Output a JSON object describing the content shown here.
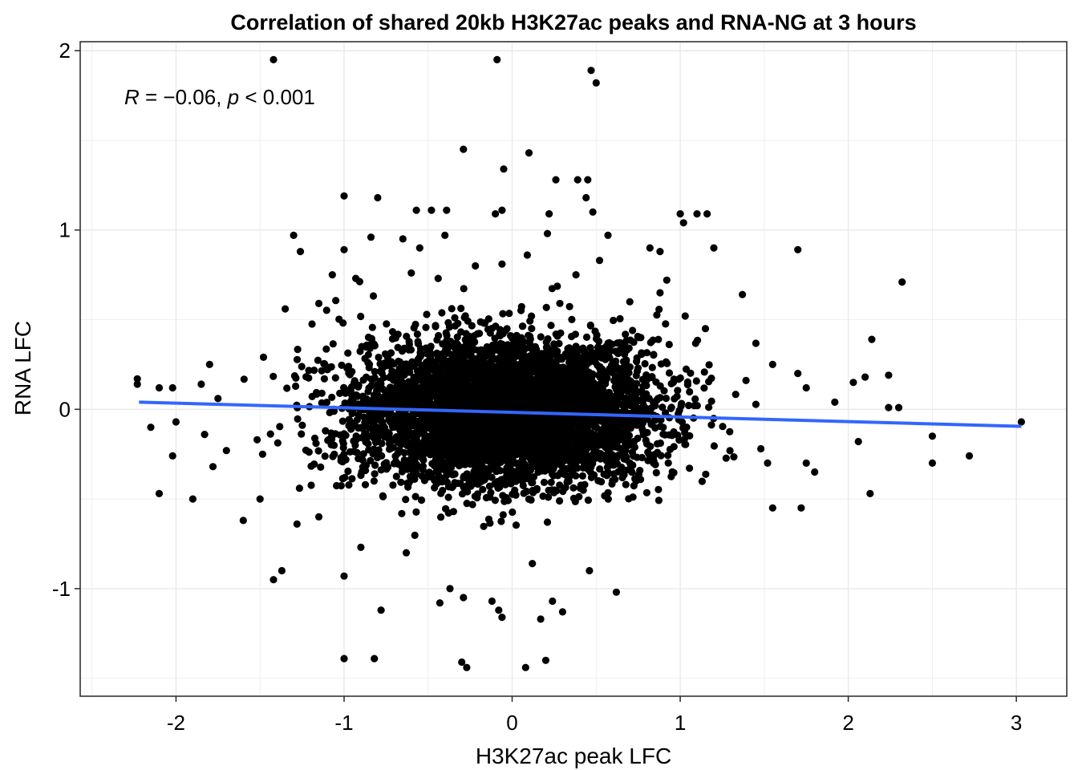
{
  "chart_data": {
    "type": "scatter",
    "title": "Correlation of shared 20kb H3K27ac peaks and RNA-NG  at 3 hours",
    "xlabel": "H3K27ac peak LFC",
    "ylabel": "RNA LFC",
    "xlim": [
      -2.57,
      3.3
    ],
    "ylim": [
      -1.6,
      2.05
    ],
    "x_ticks": [
      -2,
      -1,
      0,
      1,
      2,
      3
    ],
    "x_tick_labels": [
      "-2",
      "-1",
      "0",
      "1",
      "2",
      "3"
    ],
    "y_ticks": [
      -1,
      0,
      1,
      2
    ],
    "y_tick_labels": [
      "-1",
      "0",
      "1",
      "2"
    ],
    "grid": true,
    "annotation": {
      "r_symbol": "R",
      "r_text": " = −0.06, ",
      "p_symbol": "p",
      "p_text": " < 0.001",
      "r_value": -0.06
    },
    "regression_line": {
      "color": "#3366FF",
      "x": [
        -2.22,
        3.03
      ],
      "y": [
        0.04,
        -0.095
      ]
    },
    "point_color": "#000000",
    "cluster": {
      "count": 5200,
      "x_center": -0.05,
      "x_spread": 0.45,
      "y_center": -0.01,
      "y_spread": 0.2
    },
    "points": [
      [
        -1.42,
        1.95
      ],
      [
        -0.09,
        1.95
      ],
      [
        0.47,
        1.89
      ],
      [
        0.5,
        1.82
      ],
      [
        -0.29,
        1.45
      ],
      [
        0.1,
        1.43
      ],
      [
        -0.05,
        1.34
      ],
      [
        0.26,
        1.28
      ],
      [
        0.39,
        1.28
      ],
      [
        0.45,
        1.28
      ],
      [
        -1.0,
        1.19
      ],
      [
        -0.8,
        1.18
      ],
      [
        0.44,
        1.18
      ],
      [
        0.48,
        1.1
      ],
      [
        -0.57,
        1.11
      ],
      [
        -0.48,
        1.11
      ],
      [
        -0.39,
        1.11
      ],
      [
        -0.06,
        1.11
      ],
      [
        -0.1,
        1.09
      ],
      [
        0.22,
        1.09
      ],
      [
        1.0,
        1.09
      ],
      [
        1.02,
        1.04
      ],
      [
        1.1,
        1.09
      ],
      [
        1.16,
        1.09
      ],
      [
        -1.3,
        0.97
      ],
      [
        -1.26,
        0.88
      ],
      [
        -0.84,
        0.96
      ],
      [
        -0.65,
        0.95
      ],
      [
        -0.55,
        0.9
      ],
      [
        -1.0,
        0.89
      ],
      [
        0.21,
        0.98
      ],
      [
        0.57,
        0.97
      ],
      [
        0.88,
        0.88
      ],
      [
        0.82,
        0.9
      ],
      [
        1.2,
        0.9
      ],
      [
        1.7,
        0.89
      ],
      [
        -0.4,
        0.97
      ],
      [
        0.09,
        0.86
      ],
      [
        -0.06,
        0.81
      ],
      [
        0.52,
        0.83
      ],
      [
        -1.07,
        0.75
      ],
      [
        -0.93,
        0.73
      ],
      [
        -0.6,
        0.76
      ],
      [
        -0.44,
        0.73
      ],
      [
        0.38,
        0.75
      ],
      [
        0.92,
        0.72
      ],
      [
        0.88,
        0.65
      ],
      [
        1.37,
        0.64
      ],
      [
        2.32,
        0.71
      ],
      [
        -1.35,
        0.56
      ],
      [
        -1.15,
        0.59
      ],
      [
        0.7,
        0.6
      ],
      [
        1.03,
        0.52
      ],
      [
        1.15,
        0.45
      ],
      [
        2.14,
        0.39
      ],
      [
        2.1,
        0.18
      ],
      [
        2.24,
        0.19
      ],
      [
        2.03,
        0.15
      ],
      [
        -2.23,
        0.17
      ],
      [
        -2.23,
        0.14
      ],
      [
        -2.1,
        0.12
      ],
      [
        -2.02,
        0.12
      ],
      [
        -1.85,
        0.14
      ],
      [
        -1.8,
        0.25
      ],
      [
        1.55,
        0.25
      ],
      [
        1.7,
        0.2
      ],
      [
        1.75,
        0.12
      ],
      [
        1.92,
        0.04
      ],
      [
        2.3,
        0.01
      ],
      [
        2.24,
        0.01
      ],
      [
        3.03,
        -0.07
      ],
      [
        -2.15,
        -0.1
      ],
      [
        -2.0,
        -0.07
      ],
      [
        -1.83,
        -0.14
      ],
      [
        -2.02,
        -0.26
      ],
      [
        -1.7,
        -0.23
      ],
      [
        -1.78,
        -0.32
      ],
      [
        -2.1,
        -0.47
      ],
      [
        -1.9,
        -0.5
      ],
      [
        1.48,
        -0.22
      ],
      [
        1.52,
        -0.3
      ],
      [
        1.75,
        -0.3
      ],
      [
        1.8,
        -0.35
      ],
      [
        2.06,
        -0.18
      ],
      [
        2.5,
        -0.15
      ],
      [
        2.5,
        -0.3
      ],
      [
        2.72,
        -0.26
      ],
      [
        2.13,
        -0.47
      ],
      [
        1.72,
        -0.55
      ],
      [
        1.55,
        -0.55
      ],
      [
        -1.6,
        -0.62
      ],
      [
        -1.5,
        -0.5
      ],
      [
        -1.15,
        -0.6
      ],
      [
        -1.28,
        -0.64
      ],
      [
        0.62,
        -1.02
      ],
      [
        0.24,
        -1.07
      ],
      [
        0.12,
        -0.86
      ],
      [
        0.46,
        -0.9
      ],
      [
        -1.42,
        -0.95
      ],
      [
        -1.37,
        -0.9
      ],
      [
        -1.0,
        -0.93
      ],
      [
        -0.9,
        -0.77
      ],
      [
        -0.63,
        -0.8
      ],
      [
        -0.43,
        -1.08
      ],
      [
        -0.37,
        -1.0
      ],
      [
        -0.29,
        -1.05
      ],
      [
        -0.12,
        -1.07
      ],
      [
        -0.08,
        -1.12
      ],
      [
        -0.06,
        -1.16
      ],
      [
        -0.78,
        -1.12
      ],
      [
        0.17,
        -1.17
      ],
      [
        0.3,
        -1.13
      ],
      [
        -1.0,
        -1.39
      ],
      [
        -0.82,
        -1.39
      ],
      [
        -0.3,
        -1.41
      ],
      [
        -0.27,
        -1.44
      ],
      [
        0.08,
        -1.44
      ],
      [
        0.2,
        -1.4
      ]
    ]
  }
}
